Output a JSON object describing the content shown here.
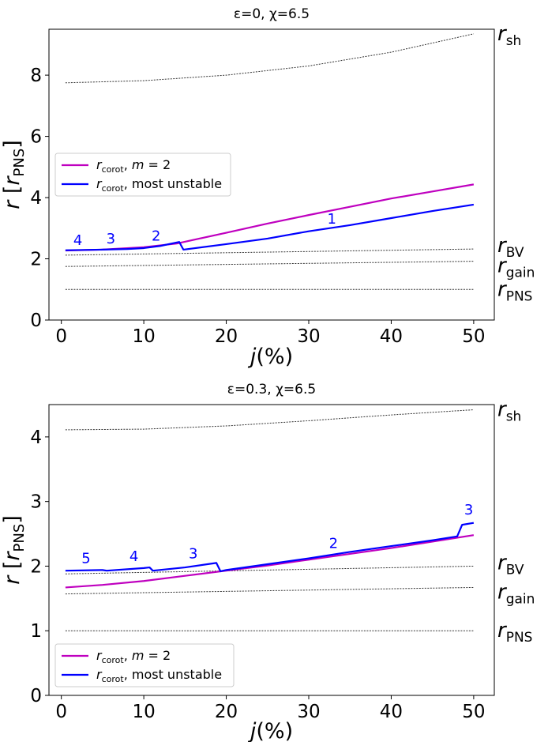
{
  "chart_data": [
    {
      "type": "line",
      "title": "ε=0, χ=6.5",
      "xlabel": "j(%)",
      "ylabel": "r [r_PNS]",
      "xlim": [
        -1.5,
        52.5
      ],
      "ylim": [
        0,
        9.5
      ],
      "xticks": [
        "0",
        "10",
        "20",
        "30",
        "40",
        "50"
      ],
      "yticks": [
        "0",
        "2",
        "4",
        "6",
        "8"
      ],
      "legend": {
        "position": "middle-left",
        "items": [
          {
            "name": "r_corot, m = 2",
            "color": "#bf00bf"
          },
          {
            "name": "r_corot, most unstable",
            "color": "#0000ff"
          }
        ]
      },
      "series": [
        {
          "name": "r_corot, m = 2",
          "color": "#bf00bf",
          "x": [
            0.5,
            5,
            10,
            14,
            20,
            25,
            30,
            35,
            40,
            45,
            50
          ],
          "y": [
            2.27,
            2.3,
            2.38,
            2.5,
            2.85,
            3.15,
            3.43,
            3.7,
            3.97,
            4.2,
            4.43
          ]
        },
        {
          "name": "r_corot, most unstable",
          "color": "#0000ff",
          "x": [
            0.5,
            5,
            8,
            10,
            12,
            14.3,
            14.8,
            20,
            25,
            30,
            35,
            40,
            45,
            50
          ],
          "y": [
            2.28,
            2.3,
            2.32,
            2.35,
            2.42,
            2.55,
            2.3,
            2.48,
            2.66,
            2.9,
            3.1,
            3.33,
            3.56,
            3.77
          ]
        }
      ],
      "reference_lines": [
        {
          "label": "r",
          "sub": "sh",
          "x": [
            0.5,
            10,
            20,
            30,
            40,
            50
          ],
          "y": [
            7.75,
            7.82,
            8.0,
            8.3,
            8.75,
            9.35
          ]
        },
        {
          "label": "r",
          "sub": "BV",
          "x": [
            0.5,
            50
          ],
          "y": [
            2.12,
            2.32
          ]
        },
        {
          "label": "r",
          "sub": "gain",
          "x": [
            0.5,
            50
          ],
          "y": [
            1.75,
            1.92
          ]
        },
        {
          "label": "r",
          "sub": "PNS",
          "x": [
            0.5,
            50
          ],
          "y": [
            1.0,
            1.0
          ]
        }
      ],
      "mode_labels": [
        {
          "text": "4",
          "x": 2.0,
          "y": 2.45
        },
        {
          "text": "3",
          "x": 6.0,
          "y": 2.5
        },
        {
          "text": "2",
          "x": 11.5,
          "y": 2.6
        },
        {
          "text": "1",
          "x": 32.8,
          "y": 3.15
        }
      ]
    },
    {
      "type": "line",
      "title": "ε=0.3, χ=6.5",
      "xlabel": "j(%)",
      "ylabel": "r [r_PNS]",
      "xlim": [
        -1.5,
        52.5
      ],
      "ylim": [
        0,
        4.5
      ],
      "xticks": [
        "0",
        "10",
        "20",
        "30",
        "40",
        "50"
      ],
      "yticks": [
        "0",
        "1",
        "2",
        "3",
        "4"
      ],
      "legend": {
        "position": "bottom-left",
        "items": [
          {
            "name": "r_corot, m = 2",
            "color": "#bf00bf"
          },
          {
            "name": "r_corot, most unstable",
            "color": "#0000ff"
          }
        ]
      },
      "series": [
        {
          "name": "r_corot, m = 2",
          "color": "#bf00bf",
          "x": [
            0.5,
            5,
            10,
            15,
            20,
            25,
            30,
            35,
            40,
            45,
            50
          ],
          "y": [
            1.67,
            1.71,
            1.77,
            1.85,
            1.93,
            2.01,
            2.1,
            2.19,
            2.28,
            2.38,
            2.48
          ]
        },
        {
          "name": "r_corot, most unstable",
          "color": "#0000ff",
          "x": [
            0.5,
            5,
            5.5,
            10,
            10.7,
            11.1,
            15,
            18.8,
            19.3,
            20,
            25,
            30,
            35,
            40,
            45,
            48,
            48.6,
            50
          ],
          "y": [
            1.93,
            1.94,
            1.93,
            1.97,
            1.98,
            1.93,
            1.98,
            2.05,
            1.92,
            1.94,
            2.03,
            2.12,
            2.22,
            2.31,
            2.4,
            2.46,
            2.64,
            2.67
          ]
        }
      ],
      "reference_lines": [
        {
          "label": "r",
          "sub": "sh",
          "x": [
            0.5,
            10,
            20,
            30,
            40,
            50
          ],
          "y": [
            4.11,
            4.12,
            4.17,
            4.25,
            4.34,
            4.42
          ]
        },
        {
          "label": "r",
          "sub": "BV",
          "x": [
            0.5,
            50
          ],
          "y": [
            1.88,
            2.0
          ]
        },
        {
          "label": "r",
          "sub": "gain",
          "x": [
            0.5,
            50
          ],
          "y": [
            1.57,
            1.67
          ]
        },
        {
          "label": "r",
          "sub": "PNS",
          "x": [
            0.5,
            50
          ],
          "y": [
            1.0,
            1.0
          ]
        }
      ],
      "mode_labels": [
        {
          "text": "5",
          "x": 3.0,
          "y": 2.05
        },
        {
          "text": "4",
          "x": 8.8,
          "y": 2.08
        },
        {
          "text": "3",
          "x": 16.0,
          "y": 2.12
        },
        {
          "text": "2",
          "x": 33.0,
          "y": 2.28
        },
        {
          "text": "3",
          "x": 49.4,
          "y": 2.8
        }
      ]
    }
  ]
}
